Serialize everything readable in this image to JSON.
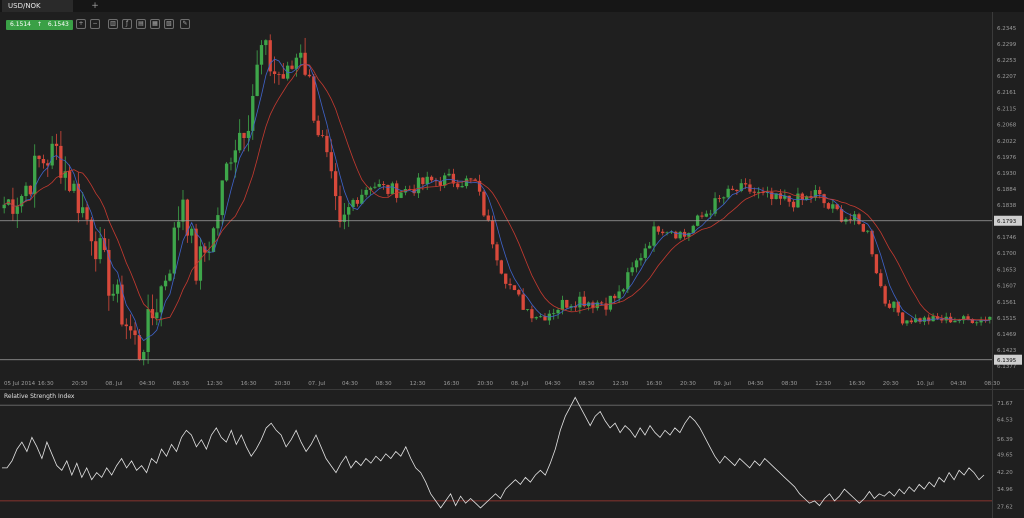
{
  "tab": {
    "label": "USD/NOK",
    "add": "+"
  },
  "quote": {
    "bid": "6.1514",
    "arrow": "↑",
    "ask": "6.1543"
  },
  "toolbar": [
    {
      "name": "zoom-in-icon",
      "glyph": "+"
    },
    {
      "name": "zoom-out-icon",
      "glyph": "−"
    },
    {
      "name": "chart-type-icon",
      "glyph": "▥"
    },
    {
      "name": "indicators-icon",
      "glyph": "ƒ"
    },
    {
      "name": "templates-icon",
      "glyph": "▤"
    },
    {
      "name": "save-icon",
      "glyph": "▦"
    },
    {
      "name": "study-icon",
      "glyph": "▧"
    },
    {
      "name": "draw-icon",
      "glyph": "✎"
    }
  ],
  "colors": {
    "up": "#3ea64a",
    "down": "#d8493b",
    "ma_fast": "#3f63c9",
    "ma_slow": "#c53a30",
    "rsi_line": "#e2e2e2",
    "level_line": "#a0a0a0",
    "rsi_low_line": "#a83a32",
    "rsi_high_line": "#6f6f6f"
  },
  "chart_data": [
    {
      "type": "candlestick",
      "symbol": "USD/NOK",
      "y_ticks": [
        "6.2345",
        "6.2299",
        "6.2253",
        "6.2207",
        "6.2161",
        "6.2115",
        "6.2068",
        "6.2022",
        "6.1976",
        "6.1930",
        "6.1884",
        "6.1838",
        "6.1792",
        "6.1746",
        "6.1700",
        "6.1653",
        "6.1607",
        "6.1561",
        "6.1515",
        "6.1469",
        "6.1423",
        "6.1377"
      ],
      "ylim": [
        6.1377,
        6.2345
      ],
      "levels": [
        {
          "value": 6.1793,
          "label": "6.1793"
        },
        {
          "value": 6.1395,
          "label": "6.1395"
        }
      ],
      "x_ticks": [
        "05 Jul 2014",
        "16:30",
        "20:30",
        "08. Jul",
        "04:30",
        "08:30",
        "12:30",
        "16:30",
        "20:30",
        "07. Jul",
        "04:30",
        "08:30",
        "12:30",
        "16:30",
        "20:30",
        "08. Jul",
        "04:30",
        "08:30",
        "12:30",
        "16:30",
        "20:30",
        "09. Jul",
        "04:30",
        "08:30",
        "12:30",
        "16:30",
        "20:30",
        "10. Jul",
        "04:30",
        "08:30"
      ],
      "anchors": [
        [
          0,
          6.184
        ],
        [
          4,
          6.187
        ],
        [
          8,
          6.196
        ],
        [
          12,
          6.199
        ],
        [
          16,
          6.188
        ],
        [
          20,
          6.177
        ],
        [
          24,
          6.162
        ],
        [
          28,
          6.15
        ],
        [
          31,
          6.142
        ],
        [
          34,
          6.152
        ],
        [
          38,
          6.168
        ],
        [
          41,
          6.187
        ],
        [
          44,
          6.165
        ],
        [
          48,
          6.176
        ],
        [
          52,
          6.2
        ],
        [
          56,
          6.21
        ],
        [
          59,
          6.228
        ],
        [
          62,
          6.222
        ],
        [
          65,
          6.22
        ],
        [
          68,
          6.23
        ],
        [
          71,
          6.212
        ],
        [
          74,
          6.195
        ],
        [
          77,
          6.175
        ],
        [
          80,
          6.185
        ],
        [
          84,
          6.19
        ],
        [
          88,
          6.188
        ],
        [
          92,
          6.188
        ],
        [
          96,
          6.19
        ],
        [
          100,
          6.191
        ],
        [
          104,
          6.191
        ],
        [
          108,
          6.19
        ],
        [
          111,
          6.178
        ],
        [
          114,
          6.166
        ],
        [
          117,
          6.158
        ],
        [
          120,
          6.154
        ],
        [
          123,
          6.152
        ],
        [
          126,
          6.154
        ],
        [
          129,
          6.156
        ],
        [
          132,
          6.157
        ],
        [
          135,
          6.156
        ],
        [
          138,
          6.156
        ],
        [
          141,
          6.158
        ],
        [
          144,
          6.165
        ],
        [
          147,
          6.172
        ],
        [
          150,
          6.178
        ],
        [
          153,
          6.177
        ],
        [
          156,
          6.175
        ],
        [
          159,
          6.179
        ],
        [
          162,
          6.183
        ],
        [
          165,
          6.186
        ],
        [
          168,
          6.188
        ],
        [
          171,
          6.188
        ],
        [
          174,
          6.186
        ],
        [
          177,
          6.185
        ],
        [
          180,
          6.185
        ],
        [
          183,
          6.185
        ],
        [
          186,
          6.187
        ],
        [
          189,
          6.183
        ],
        [
          192,
          6.181
        ],
        [
          195,
          6.179
        ],
        [
          198,
          6.176
        ],
        [
          200,
          6.165
        ],
        [
          202,
          6.156
        ],
        [
          204,
          6.155
        ],
        [
          206,
          6.151
        ],
        [
          209,
          6.151
        ],
        [
          212,
          6.151
        ],
        [
          215,
          6.151
        ],
        [
          218,
          6.151
        ],
        [
          221,
          6.151
        ],
        [
          224,
          6.151
        ],
        [
          226,
          6.152
        ]
      ],
      "moving_averages": [
        "fast",
        "slow"
      ]
    },
    {
      "type": "line",
      "title": "Relative Strength Index",
      "y_ticks": [
        "71.67",
        "64.53",
        "56.39",
        "49.65",
        "42.20",
        "34.96",
        "27.62"
      ],
      "ylim": [
        24.0,
        75.0
      ],
      "levels": [
        70.67,
        30.0
      ],
      "values": [
        44,
        44,
        47,
        52,
        55,
        51,
        57,
        53,
        48,
        55,
        50,
        45,
        43,
        47,
        41,
        46,
        40,
        44,
        39,
        42,
        40,
        44,
        41,
        45,
        48,
        44,
        47,
        43,
        45,
        42,
        48,
        46,
        52,
        49,
        54,
        51,
        57,
        60,
        58,
        53,
        56,
        52,
        58,
        61,
        57,
        55,
        60,
        54,
        58,
        53,
        49,
        52,
        56,
        61,
        63,
        60,
        58,
        53,
        56,
        60,
        55,
        51,
        54,
        58,
        53,
        48,
        45,
        42,
        46,
        49,
        44,
        47,
        45,
        48,
        46,
        49,
        47,
        50,
        48,
        51,
        49,
        53,
        48,
        44,
        42,
        38,
        33,
        30,
        27,
        30,
        33,
        28,
        32,
        29,
        31,
        29,
        27,
        29,
        31,
        33,
        31,
        35,
        37,
        39,
        37,
        40,
        38,
        41,
        43,
        41,
        46,
        52,
        60,
        66,
        70,
        74,
        70,
        66,
        62,
        66,
        68,
        64,
        61,
        63,
        59,
        62,
        60,
        57,
        61,
        58,
        62,
        59,
        57,
        60,
        58,
        61,
        59,
        63,
        66,
        64,
        61,
        57,
        53,
        49,
        46,
        49,
        47,
        45,
        48,
        46,
        44,
        47,
        45,
        48,
        46,
        44,
        42,
        40,
        38,
        36,
        33,
        31,
        29,
        30,
        28,
        31,
        33,
        30,
        32,
        35,
        33,
        31,
        29,
        31,
        34,
        31,
        33,
        32,
        34,
        32,
        35,
        33,
        36,
        34,
        37,
        35,
        38,
        36,
        40,
        38,
        42,
        39,
        43,
        41,
        44,
        42,
        39,
        41
      ]
    }
  ]
}
